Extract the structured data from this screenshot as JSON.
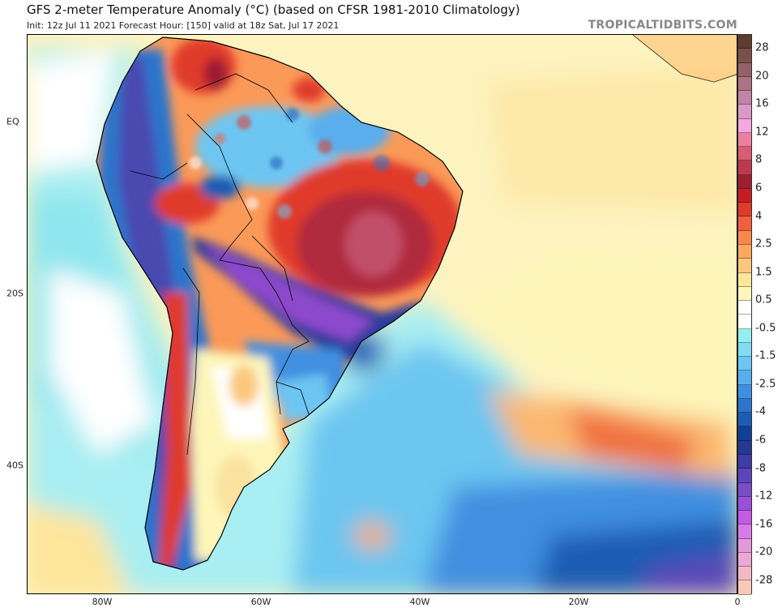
{
  "header": {
    "title": "GFS 2-meter Temperature Anomaly (°C) (based on CFSR 1981-2010 Climatology)",
    "subtitle": "Init: 12z Jul 11 2021   Forecast Hour: [150]   valid at 18z Sat, Jul 17 2021",
    "brand": "TROPICALTIDBITS.COM"
  },
  "map": {
    "region": "South America and South Atlantic",
    "variable": "2-meter temperature anomaly",
    "units": "°C",
    "lon_labels": [
      "80W",
      "60W",
      "40W",
      "20W",
      "0"
    ],
    "lat_labels": [
      "EQ",
      "20S",
      "40S"
    ]
  },
  "colorbar": {
    "labels": [
      "28",
      "20",
      "16",
      "12",
      "8",
      "6",
      "4",
      "2.5",
      "1.5",
      "0.5",
      "-0.5",
      "-1.5",
      "-2.5",
      "-4",
      "-6",
      "-8",
      "-12",
      "-16",
      "-20",
      "-28"
    ],
    "colors": [
      "#5e3d2e",
      "#7a5048",
      "#946069",
      "#ac7384",
      "#c184a8",
      "#da98c8",
      "#f7a6e0",
      "#ec7f9e",
      "#d95b74",
      "#bb3a4f",
      "#9c1f33",
      "#c81c24",
      "#e03a2a",
      "#f0603a",
      "#f8884a",
      "#fba85e",
      "#fcc77c",
      "#fde59a",
      "#fdf6b8",
      "#ffffff",
      "#ffffff",
      "#93f0ee",
      "#80dcf0",
      "#6dc6f2",
      "#5aaeee",
      "#3f8fe0",
      "#2c74cc",
      "#1e5cb4",
      "#0f4096",
      "#24388f",
      "#3e3ca6",
      "#5a46b8",
      "#7a4cc6",
      "#9a4fd6",
      "#c25ce2",
      "#d97ae6",
      "#e398dc",
      "#eca9d4",
      "#f4b8c4",
      "#f9c9b6"
    ]
  }
}
